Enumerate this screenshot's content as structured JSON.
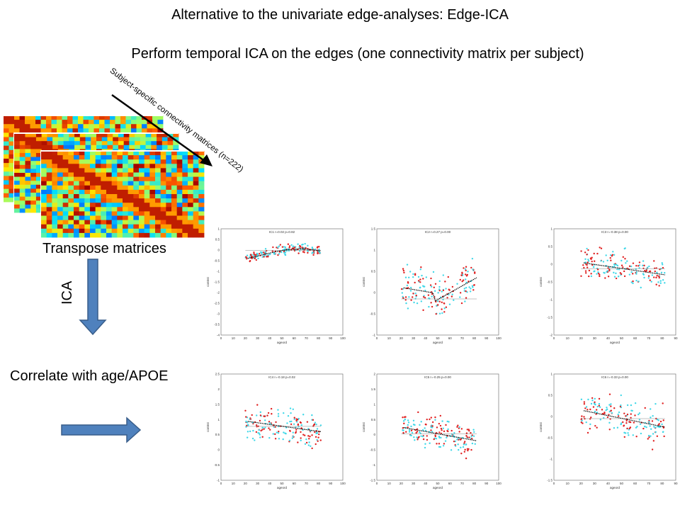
{
  "title": "Alternative to the univariate edge-analyses: Edge-ICA",
  "subtitle": "Perform temporal ICA on the edges (one connectivity matrix per subject)",
  "diagonal_label": "Subject-specific connectivity matrices (n=222)",
  "labels": {
    "transpose": "Transpose matrices",
    "ica": "ICA",
    "correlate": "Correlate with age/APOE"
  },
  "colors": {
    "arrow_fill": "#4f81bd",
    "arrow_stroke": "#385d8a",
    "scatter_red": "#e02020",
    "scatter_cyan": "#40d8e8"
  },
  "plots": [
    {
      "title": "IC1 r=0.02 p=0.82",
      "xlabel": "ageord",
      "ylabel": "contrst",
      "xlim": [
        0,
        100
      ],
      "ylim": [
        -4,
        1
      ],
      "yticks": [
        "1",
        "0.5",
        "0",
        "-0.5",
        "-1",
        "-1.5",
        "-2",
        "-2.5",
        "-3",
        "-3.5",
        "-4"
      ],
      "xticks": [
        "0",
        "10",
        "20",
        "30",
        "40",
        "50",
        "60",
        "70",
        "80",
        "90",
        "100"
      ]
    },
    {
      "title": "IC2 r=0.27 p=0.00",
      "xlabel": "ageord",
      "ylabel": "contrst",
      "xlim": [
        0,
        100
      ],
      "ylim": [
        -1,
        1.5
      ],
      "yticks": [
        "1.5",
        "1",
        "0.5",
        "0",
        "-0.5",
        "-1"
      ],
      "xticks": [
        "0",
        "10",
        "20",
        "30",
        "40",
        "50",
        "60",
        "70",
        "80",
        "90",
        "100"
      ]
    },
    {
      "title": "IC3 r=-0.38 p=0.00",
      "xlabel": "ageord",
      "ylabel": "contrst",
      "xlim": [
        0,
        90
      ],
      "ylim": [
        -2,
        1
      ],
      "yticks": [
        "1",
        "0.5",
        "0",
        "-0.5",
        "-1",
        "-1.5",
        "-2"
      ],
      "xticks": [
        "0",
        "10",
        "20",
        "30",
        "40",
        "50",
        "60",
        "70",
        "80",
        "90"
      ]
    },
    {
      "title": "IC4 r=-0.18 p=0.02",
      "xlabel": "ageord",
      "ylabel": "contrst",
      "xlim": [
        0,
        100
      ],
      "ylim": [
        -1,
        2.5
      ],
      "yticks": [
        "2.5",
        "2",
        "1.5",
        "1",
        "0.5",
        "0",
        "-0.5",
        "-1"
      ],
      "xticks": [
        "0",
        "10",
        "20",
        "30",
        "40",
        "50",
        "60",
        "70",
        "80",
        "90",
        "100"
      ]
    },
    {
      "title": "IC5 r=-0.25 p=0.00",
      "xlabel": "ageord",
      "ylabel": "contrst",
      "xlim": [
        0,
        100
      ],
      "ylim": [
        -1.5,
        2
      ],
      "yticks": [
        "2",
        "1.5",
        "1",
        "0.5",
        "0",
        "-0.5",
        "-1",
        "-1.5"
      ],
      "xticks": [
        "0",
        "10",
        "20",
        "30",
        "40",
        "50",
        "60",
        "70",
        "80",
        "90",
        "100"
      ]
    },
    {
      "title": "IC6 r=-0.33 p=0.00",
      "xlabel": "ageord",
      "ylabel": "contrst",
      "xlim": [
        0,
        90
      ],
      "ylim": [
        -1.5,
        1
      ],
      "yticks": [
        "1",
        "0.5",
        "0",
        "-0.5",
        "-1",
        "-1.5"
      ],
      "xticks": [
        "0",
        "10",
        "20",
        "30",
        "40",
        "50",
        "60",
        "70",
        "80",
        "90"
      ]
    }
  ]
}
